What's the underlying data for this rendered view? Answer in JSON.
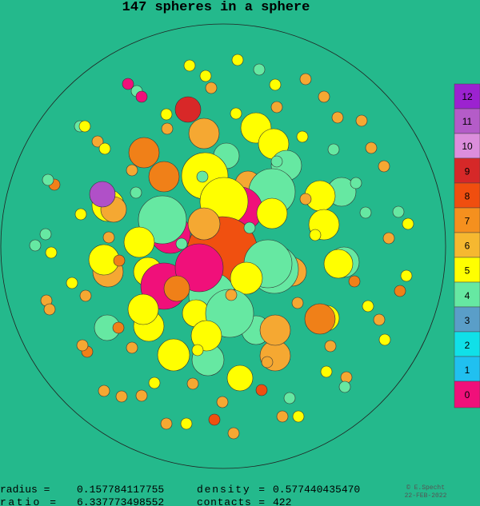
{
  "header": {
    "title": "147 spheres in a sphere"
  },
  "legend": {
    "labels": [
      "12",
      "11",
      "10",
      "9",
      "8",
      "7",
      "6",
      "5",
      "4",
      "3",
      "2",
      "1",
      "0"
    ]
  },
  "stats": [
    {
      "label": "radius =",
      "value": "0.157784117755"
    },
    {
      "label": "density =",
      "value": "0.577440435470"
    },
    {
      "label": "ratio =",
      "value": "6.337773498552"
    },
    {
      "label": "contacts =",
      "value": "422"
    }
  ],
  "credit": {
    "author": "© E.Specht",
    "date": "22-FEB-2022"
  }
}
